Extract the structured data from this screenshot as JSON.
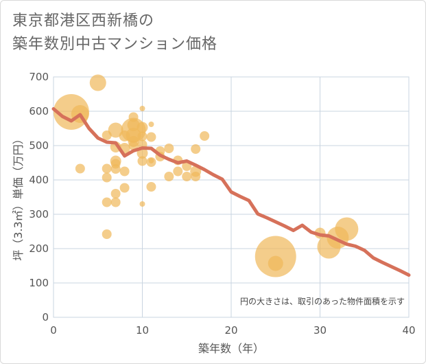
{
  "title_line1": "東京都港区西新橋の",
  "title_line2": "築年数別中古マンション価格",
  "chart_data": {
    "type": "scatter",
    "title": "東京都港区西新橋の築年数別中古マンション価格",
    "xlabel": "築年数（年）",
    "ylabel": "坪（3.3㎡）単価（万円）",
    "xlim": [
      0,
      40
    ],
    "ylim": [
      0,
      700
    ],
    "xticks": [
      0,
      10,
      20,
      30,
      40
    ],
    "yticks": [
      0,
      100,
      200,
      300,
      400,
      500,
      600,
      700
    ],
    "grid": true,
    "note": "円の大きさは、取引のあった物件面積を示す",
    "colors": {
      "bubble": "#f0b85a",
      "line": "#d6715a",
      "grid": "#c9d4e0"
    },
    "bubbles": [
      {
        "x": 2,
        "y": 598,
        "size": 26
      },
      {
        "x": 3,
        "y": 592,
        "size": 13
      },
      {
        "x": 5,
        "y": 683,
        "size": 12
      },
      {
        "x": 3,
        "y": 433,
        "size": 7
      },
      {
        "x": 6,
        "y": 530,
        "size": 7
      },
      {
        "x": 6,
        "y": 433,
        "size": 7
      },
      {
        "x": 6,
        "y": 407,
        "size": 7
      },
      {
        "x": 6,
        "y": 335,
        "size": 7
      },
      {
        "x": 6,
        "y": 242,
        "size": 7
      },
      {
        "x": 7,
        "y": 545,
        "size": 11
      },
      {
        "x": 7,
        "y": 496,
        "size": 8
      },
      {
        "x": 7,
        "y": 455,
        "size": 8
      },
      {
        "x": 7,
        "y": 447,
        "size": 7
      },
      {
        "x": 7,
        "y": 432,
        "size": 7
      },
      {
        "x": 7,
        "y": 360,
        "size": 7
      },
      {
        "x": 7,
        "y": 335,
        "size": 7
      },
      {
        "x": 8,
        "y": 528,
        "size": 8
      },
      {
        "x": 8,
        "y": 492,
        "size": 8
      },
      {
        "x": 8,
        "y": 425,
        "size": 7
      },
      {
        "x": 8,
        "y": 377,
        "size": 7
      },
      {
        "x": 9,
        "y": 583,
        "size": 7
      },
      {
        "x": 9,
        "y": 560,
        "size": 9
      },
      {
        "x": 9,
        "y": 545,
        "size": 18
      },
      {
        "x": 9,
        "y": 530,
        "size": 11
      },
      {
        "x": 9,
        "y": 512,
        "size": 8
      },
      {
        "x": 9,
        "y": 500,
        "size": 7
      },
      {
        "x": 10,
        "y": 608,
        "size": 4
      },
      {
        "x": 10,
        "y": 553,
        "size": 8
      },
      {
        "x": 10,
        "y": 527,
        "size": 7
      },
      {
        "x": 10,
        "y": 503,
        "size": 7
      },
      {
        "x": 10,
        "y": 478,
        "size": 8
      },
      {
        "x": 10,
        "y": 455,
        "size": 7
      },
      {
        "x": 10,
        "y": 330,
        "size": 4
      },
      {
        "x": 11,
        "y": 562,
        "size": 4
      },
      {
        "x": 11,
        "y": 525,
        "size": 7
      },
      {
        "x": 11,
        "y": 456,
        "size": 4
      },
      {
        "x": 11,
        "y": 452,
        "size": 7
      },
      {
        "x": 11,
        "y": 380,
        "size": 7
      },
      {
        "x": 12,
        "y": 484,
        "size": 7
      },
      {
        "x": 12,
        "y": 468,
        "size": 7
      },
      {
        "x": 13,
        "y": 492,
        "size": 7
      },
      {
        "x": 13,
        "y": 410,
        "size": 7
      },
      {
        "x": 14,
        "y": 457,
        "size": 7
      },
      {
        "x": 14,
        "y": 425,
        "size": 7
      },
      {
        "x": 15,
        "y": 440,
        "size": 7
      },
      {
        "x": 15,
        "y": 410,
        "size": 7
      },
      {
        "x": 16,
        "y": 490,
        "size": 7
      },
      {
        "x": 16,
        "y": 425,
        "size": 8
      },
      {
        "x": 16,
        "y": 410,
        "size": 7
      },
      {
        "x": 17,
        "y": 528,
        "size": 7
      },
      {
        "x": 25,
        "y": 177,
        "size": 30
      },
      {
        "x": 25,
        "y": 157,
        "size": 11
      },
      {
        "x": 30,
        "y": 245,
        "size": 8
      },
      {
        "x": 31,
        "y": 205,
        "size": 17
      },
      {
        "x": 32,
        "y": 232,
        "size": 16
      },
      {
        "x": 33,
        "y": 257,
        "size": 17
      }
    ],
    "trend": {
      "x": [
        0,
        1,
        2,
        3,
        4,
        5,
        6,
        7,
        8,
        9,
        10,
        11,
        12,
        13,
        14,
        15,
        16,
        17,
        18,
        19,
        20,
        21,
        22,
        23,
        24,
        25,
        26,
        27,
        28,
        29,
        30,
        31,
        32,
        33,
        34,
        35,
        36,
        37,
        38,
        39,
        40
      ],
      "y": [
        607,
        585,
        572,
        590,
        550,
        522,
        510,
        508,
        470,
        485,
        493,
        492,
        472,
        460,
        450,
        455,
        443,
        430,
        415,
        402,
        365,
        352,
        340,
        301,
        290,
        278,
        266,
        253,
        268,
        248,
        240,
        237,
        225,
        213,
        207,
        195,
        173,
        160,
        148,
        136,
        123
      ]
    }
  }
}
